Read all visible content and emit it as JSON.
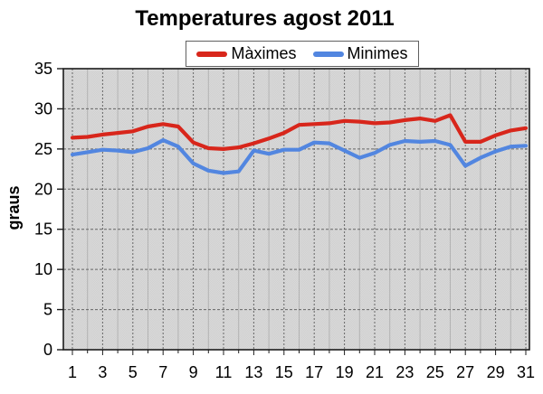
{
  "title": "Temperatures agost 2011",
  "y_axis_label": "graus",
  "legend": {
    "position": "top",
    "entries": [
      "Màximes",
      "Minimes"
    ]
  },
  "colors": {
    "maximes_line": "#d8261b",
    "minimes_line": "#5286e0",
    "plot_background": "#d8d8d8",
    "major_gridline": "#666666",
    "minor_gridline": "#b2b2b2",
    "axis_border": "#1c1c1c",
    "text": "#000000"
  },
  "chart_data": {
    "type": "line",
    "title": "Temperatures agost 2011",
    "xlabel": "",
    "ylabel": "graus",
    "ylim": [
      0,
      35
    ],
    "ytick_step": 5,
    "yticks": [
      0,
      5,
      10,
      15,
      20,
      25,
      30,
      35
    ],
    "x": [
      1,
      2,
      3,
      4,
      5,
      6,
      7,
      8,
      9,
      10,
      11,
      12,
      13,
      14,
      15,
      16,
      17,
      18,
      19,
      20,
      21,
      22,
      23,
      24,
      25,
      26,
      27,
      28,
      29,
      30,
      31
    ],
    "xtick_labels": [
      "1",
      "3",
      "5",
      "7",
      "9",
      "11",
      "13",
      "15",
      "17",
      "19",
      "21",
      "23",
      "25",
      "27",
      "29",
      "31"
    ],
    "grid": "horizontal major every 5 degrees, vertical gridline every day (darker on labeled odd days)",
    "legend_position": "top-center above plot",
    "series": [
      {
        "name": "Màximes",
        "color": "#d8261b",
        "values": [
          26.4,
          26.5,
          26.8,
          27.0,
          27.2,
          27.8,
          28.1,
          27.8,
          25.8,
          25.1,
          25.0,
          25.2,
          25.7,
          26.3,
          27.0,
          28.0,
          28.1,
          28.2,
          28.5,
          28.4,
          28.2,
          28.3,
          28.6,
          28.8,
          28.5,
          29.2,
          25.9,
          25.9,
          26.7,
          27.3,
          27.6
        ]
      },
      {
        "name": "Minimes",
        "color": "#5286e0",
        "values": [
          24.3,
          24.6,
          24.9,
          24.8,
          24.6,
          25.1,
          26.1,
          25.3,
          23.2,
          22.3,
          22.0,
          22.2,
          24.8,
          24.4,
          24.9,
          24.9,
          25.8,
          25.7,
          24.8,
          23.9,
          24.5,
          25.5,
          26.0,
          25.9,
          26.0,
          25.5,
          22.9,
          23.9,
          24.7,
          25.3,
          25.4
        ]
      }
    ]
  }
}
